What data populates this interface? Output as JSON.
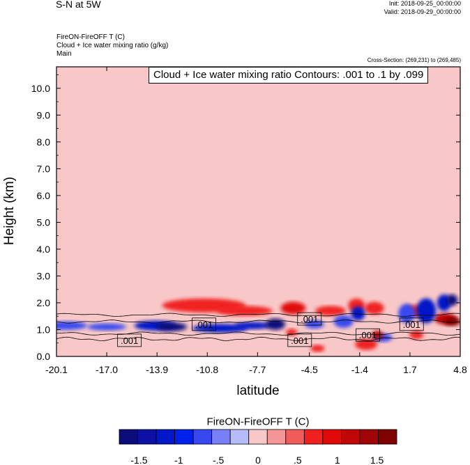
{
  "header": {
    "title": "S-N at 5W",
    "init": "Init: 2018-09-25_00:00:00",
    "valid": "Valid: 2018-09-29_00:00:00",
    "field1": "FireON-FireOFF T   (C)",
    "field2": "Cloud + Ice water mixing ratio   (g/kg)",
    "field3": "Main",
    "cross_section": "Cross-Section: (269,231) to (269,485)"
  },
  "contour_info": "Cloud + Ice water mixing ratio Contours: .001 to .1 by .099",
  "chart_data": {
    "type": "heatmap",
    "title": "S-N at 5W",
    "xlabel": "latitude",
    "ylabel": "Height (km)",
    "x_ticks": [
      "-20.1",
      "-17.0",
      "-13.9",
      "-10.8",
      "-7.7",
      "-4.5",
      "-1.4",
      "1.7",
      "4.8"
    ],
    "y_ticks": [
      "0.0",
      "1.0",
      "2.0",
      "3.0",
      "4.0",
      "5.0",
      "6.0",
      "7.0",
      "8.0",
      "9.0",
      "10.0"
    ],
    "xlim": [
      -20.1,
      4.8
    ],
    "ylim": [
      0,
      10.8
    ],
    "colorbar": {
      "label": "FireON-FireOFF T  (C)",
      "colors": [
        "#0b0b7a",
        "#0c10a3",
        "#0018c8",
        "#0020ee",
        "#3848f0",
        "#7880f5",
        "#b6bcf8",
        "#f8c8c8",
        "#f49696",
        "#f05c5c",
        "#f02020",
        "#e00a0a",
        "#c00606",
        "#a00404",
        "#800000"
      ],
      "tick_labels": [
        "-1.5",
        "-1",
        "-.5",
        "0",
        ".5",
        "1",
        "1.5"
      ],
      "tick_values": [
        -1.5,
        -1,
        -0.5,
        0,
        0.5,
        1,
        1.5
      ],
      "range": [
        -1.75,
        1.75
      ]
    },
    "contour_labels": [
      {
        "text": ".001",
        "x": -15.6,
        "y": 0.6
      },
      {
        "text": ".001",
        "x": -11.0,
        "y": 1.2
      },
      {
        "text": ".001",
        "x": -4.5,
        "y": 1.4
      },
      {
        "text": ".001",
        "x": -5.1,
        "y": 0.6
      },
      {
        "text": ".001",
        "x": -0.9,
        "y": 0.8
      },
      {
        "text": ".001",
        "x": 1.8,
        "y": 1.2
      }
    ]
  }
}
